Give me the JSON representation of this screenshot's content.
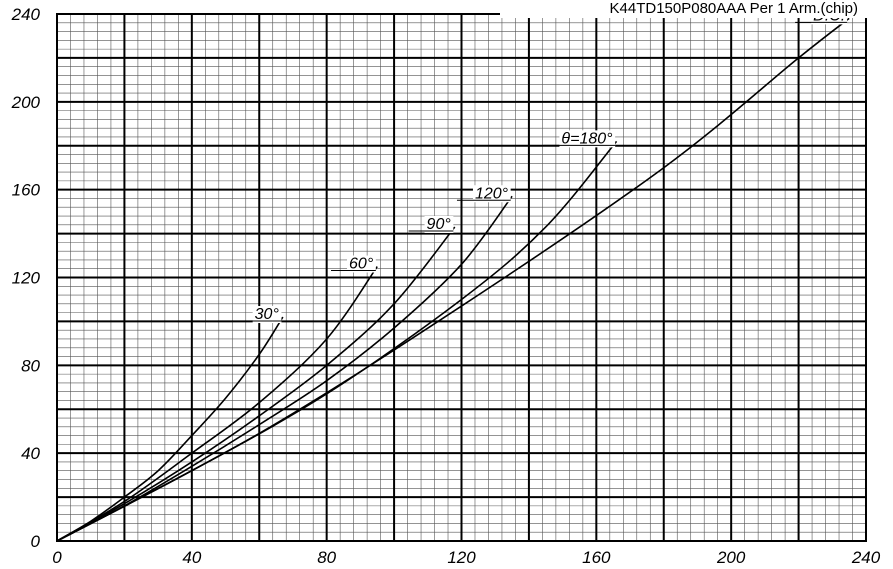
{
  "chart_data": {
    "type": "line",
    "title": "K44TD150P080AAA  Per 1 Arm.(chip)",
    "xlabel": "",
    "ylabel": "",
    "xlim": [
      0,
      240
    ],
    "ylim": [
      0,
      240
    ],
    "x_ticks": [
      "0",
      "40",
      "80",
      "120",
      "160",
      "200",
      "240"
    ],
    "y_ticks": [
      "0",
      "40",
      "80",
      "120",
      "160",
      "200",
      "240"
    ],
    "grid": true,
    "series": [
      {
        "name": "30°",
        "points": [
          [
            0,
            0
          ],
          [
            10,
            9
          ],
          [
            20,
            20
          ],
          [
            30,
            32
          ],
          [
            40,
            48
          ],
          [
            50,
            65
          ],
          [
            60,
            85
          ],
          [
            67,
            102
          ]
        ]
      },
      {
        "name": "60°",
        "points": [
          [
            0,
            0
          ],
          [
            20,
            18
          ],
          [
            40,
            40
          ],
          [
            60,
            63
          ],
          [
            80,
            92
          ],
          [
            95,
            125
          ]
        ]
      },
      {
        "name": "90°",
        "points": [
          [
            0,
            0
          ],
          [
            20,
            17
          ],
          [
            40,
            36
          ],
          [
            60,
            57
          ],
          [
            80,
            80
          ],
          [
            100,
            108
          ],
          [
            118,
            143
          ]
        ]
      },
      {
        "name": "120°",
        "points": [
          [
            0,
            0
          ],
          [
            20,
            16
          ],
          [
            40,
            34
          ],
          [
            60,
            53
          ],
          [
            80,
            73
          ],
          [
            100,
            97
          ],
          [
            120,
            126
          ],
          [
            135,
            157
          ]
        ]
      },
      {
        "name": "θ=180°",
        "points": [
          [
            0,
            0
          ],
          [
            40,
            32
          ],
          [
            80,
            67
          ],
          [
            120,
            110
          ],
          [
            145,
            143
          ],
          [
            166,
            182
          ]
        ]
      },
      {
        "name": "D.C.",
        "points": [
          [
            0,
            0
          ],
          [
            60,
            49
          ],
          [
            120,
            107
          ],
          [
            180,
            170
          ],
          [
            220,
            220
          ],
          [
            235,
            238
          ]
        ]
      }
    ]
  }
}
